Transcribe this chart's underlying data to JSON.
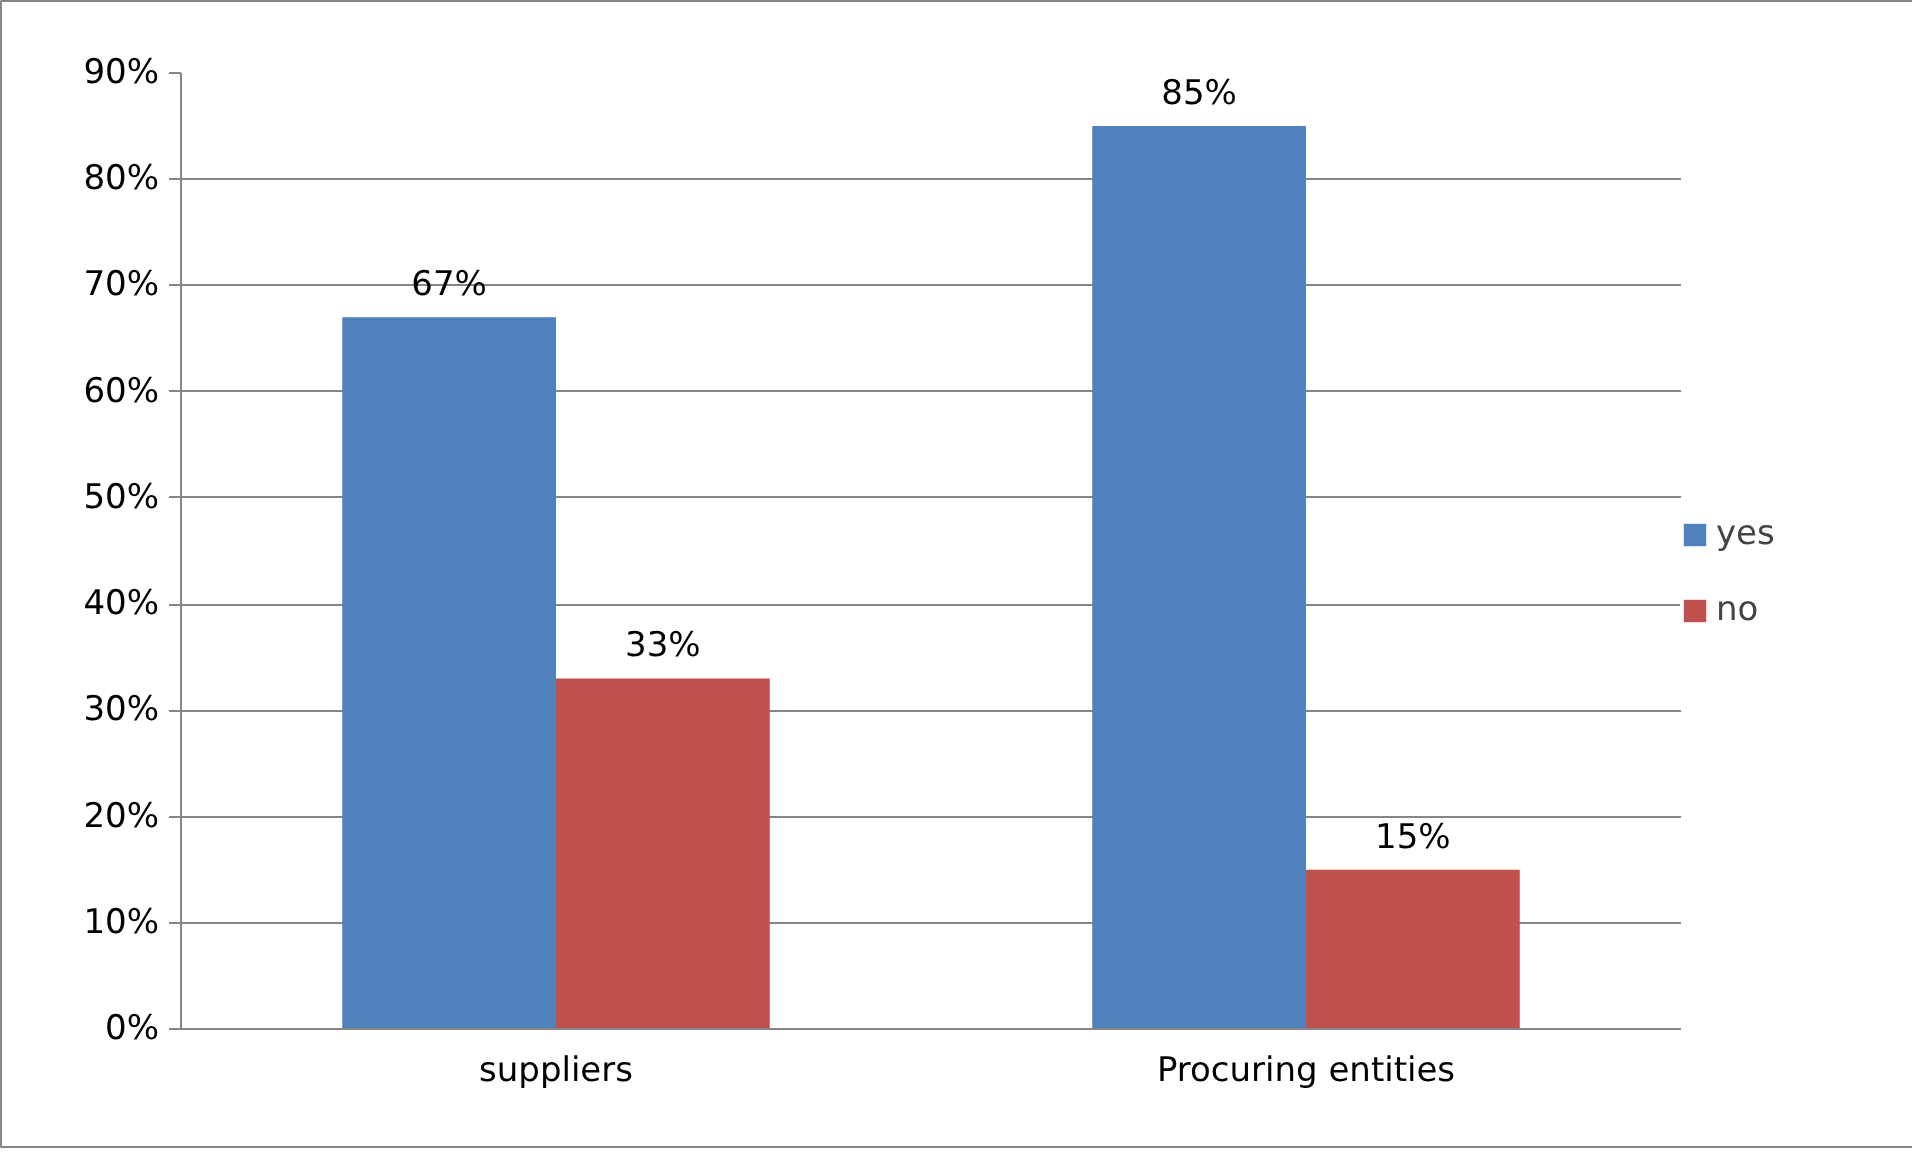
{
  "chart_data": {
    "type": "bar",
    "categories": [
      "suppliers",
      "Procuring entities"
    ],
    "series": [
      {
        "name": "yes",
        "color": "#4f81bd",
        "values": [
          67,
          85
        ],
        "value_labels": [
          "67%",
          "85%"
        ]
      },
      {
        "name": "no",
        "color": "#c0504d",
        "values": [
          33,
          15
        ],
        "value_labels": [
          "33%",
          "15%"
        ]
      }
    ],
    "ylim": [
      0,
      90
    ],
    "yticks": [
      {
        "value": 0,
        "label": "0%"
      },
      {
        "value": 10,
        "label": "10%"
      },
      {
        "value": 20,
        "label": "20%"
      },
      {
        "value": 30,
        "label": "30%"
      },
      {
        "value": 40,
        "label": "40%"
      },
      {
        "value": 50,
        "label": "50%"
      },
      {
        "value": 60,
        "label": "60%"
      },
      {
        "value": 70,
        "label": "70%"
      },
      {
        "value": 80,
        "label": "80%"
      },
      {
        "value": 90,
        "label": "90%"
      }
    ],
    "grid": "y",
    "legend": "right"
  }
}
